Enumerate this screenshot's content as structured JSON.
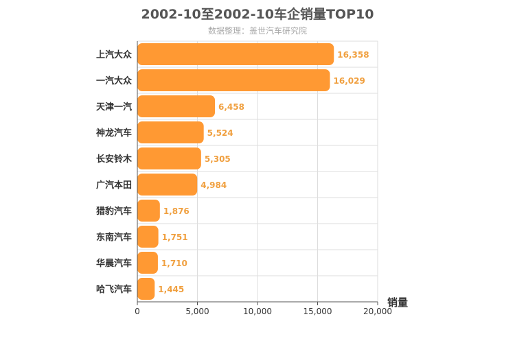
{
  "chart_data": {
    "type": "bar",
    "orientation": "horizontal",
    "title": "2002-10至2002-10车企销量TOP10",
    "subtitle": "数据整理：盖世汽车研究院",
    "categories": [
      "上汽大众",
      "一汽大众",
      "天津一汽",
      "神龙汽车",
      "长安铃木",
      "广汽本田",
      "猎豹汽车",
      "东南汽车",
      "华晨汽车",
      "哈飞汽车"
    ],
    "values": [
      16358,
      16029,
      6458,
      5524,
      5305,
      4984,
      1876,
      1751,
      1710,
      1445
    ],
    "value_labels": [
      "16,358",
      "16,029",
      "6,458",
      "5,524",
      "5,305",
      "4,984",
      "1,876",
      "1,751",
      "1,710",
      "1,445"
    ],
    "xlabel": "销量",
    "ylabel": "",
    "xlim": [
      0,
      20000
    ],
    "ticks": [
      0,
      5000,
      10000,
      15000,
      20000
    ],
    "tick_labels": [
      "0",
      "5,000",
      "10,000",
      "15,000",
      "20,000"
    ],
    "grid": true,
    "bar_color": "#ff9933",
    "value_label_color": "#f0a040"
  }
}
